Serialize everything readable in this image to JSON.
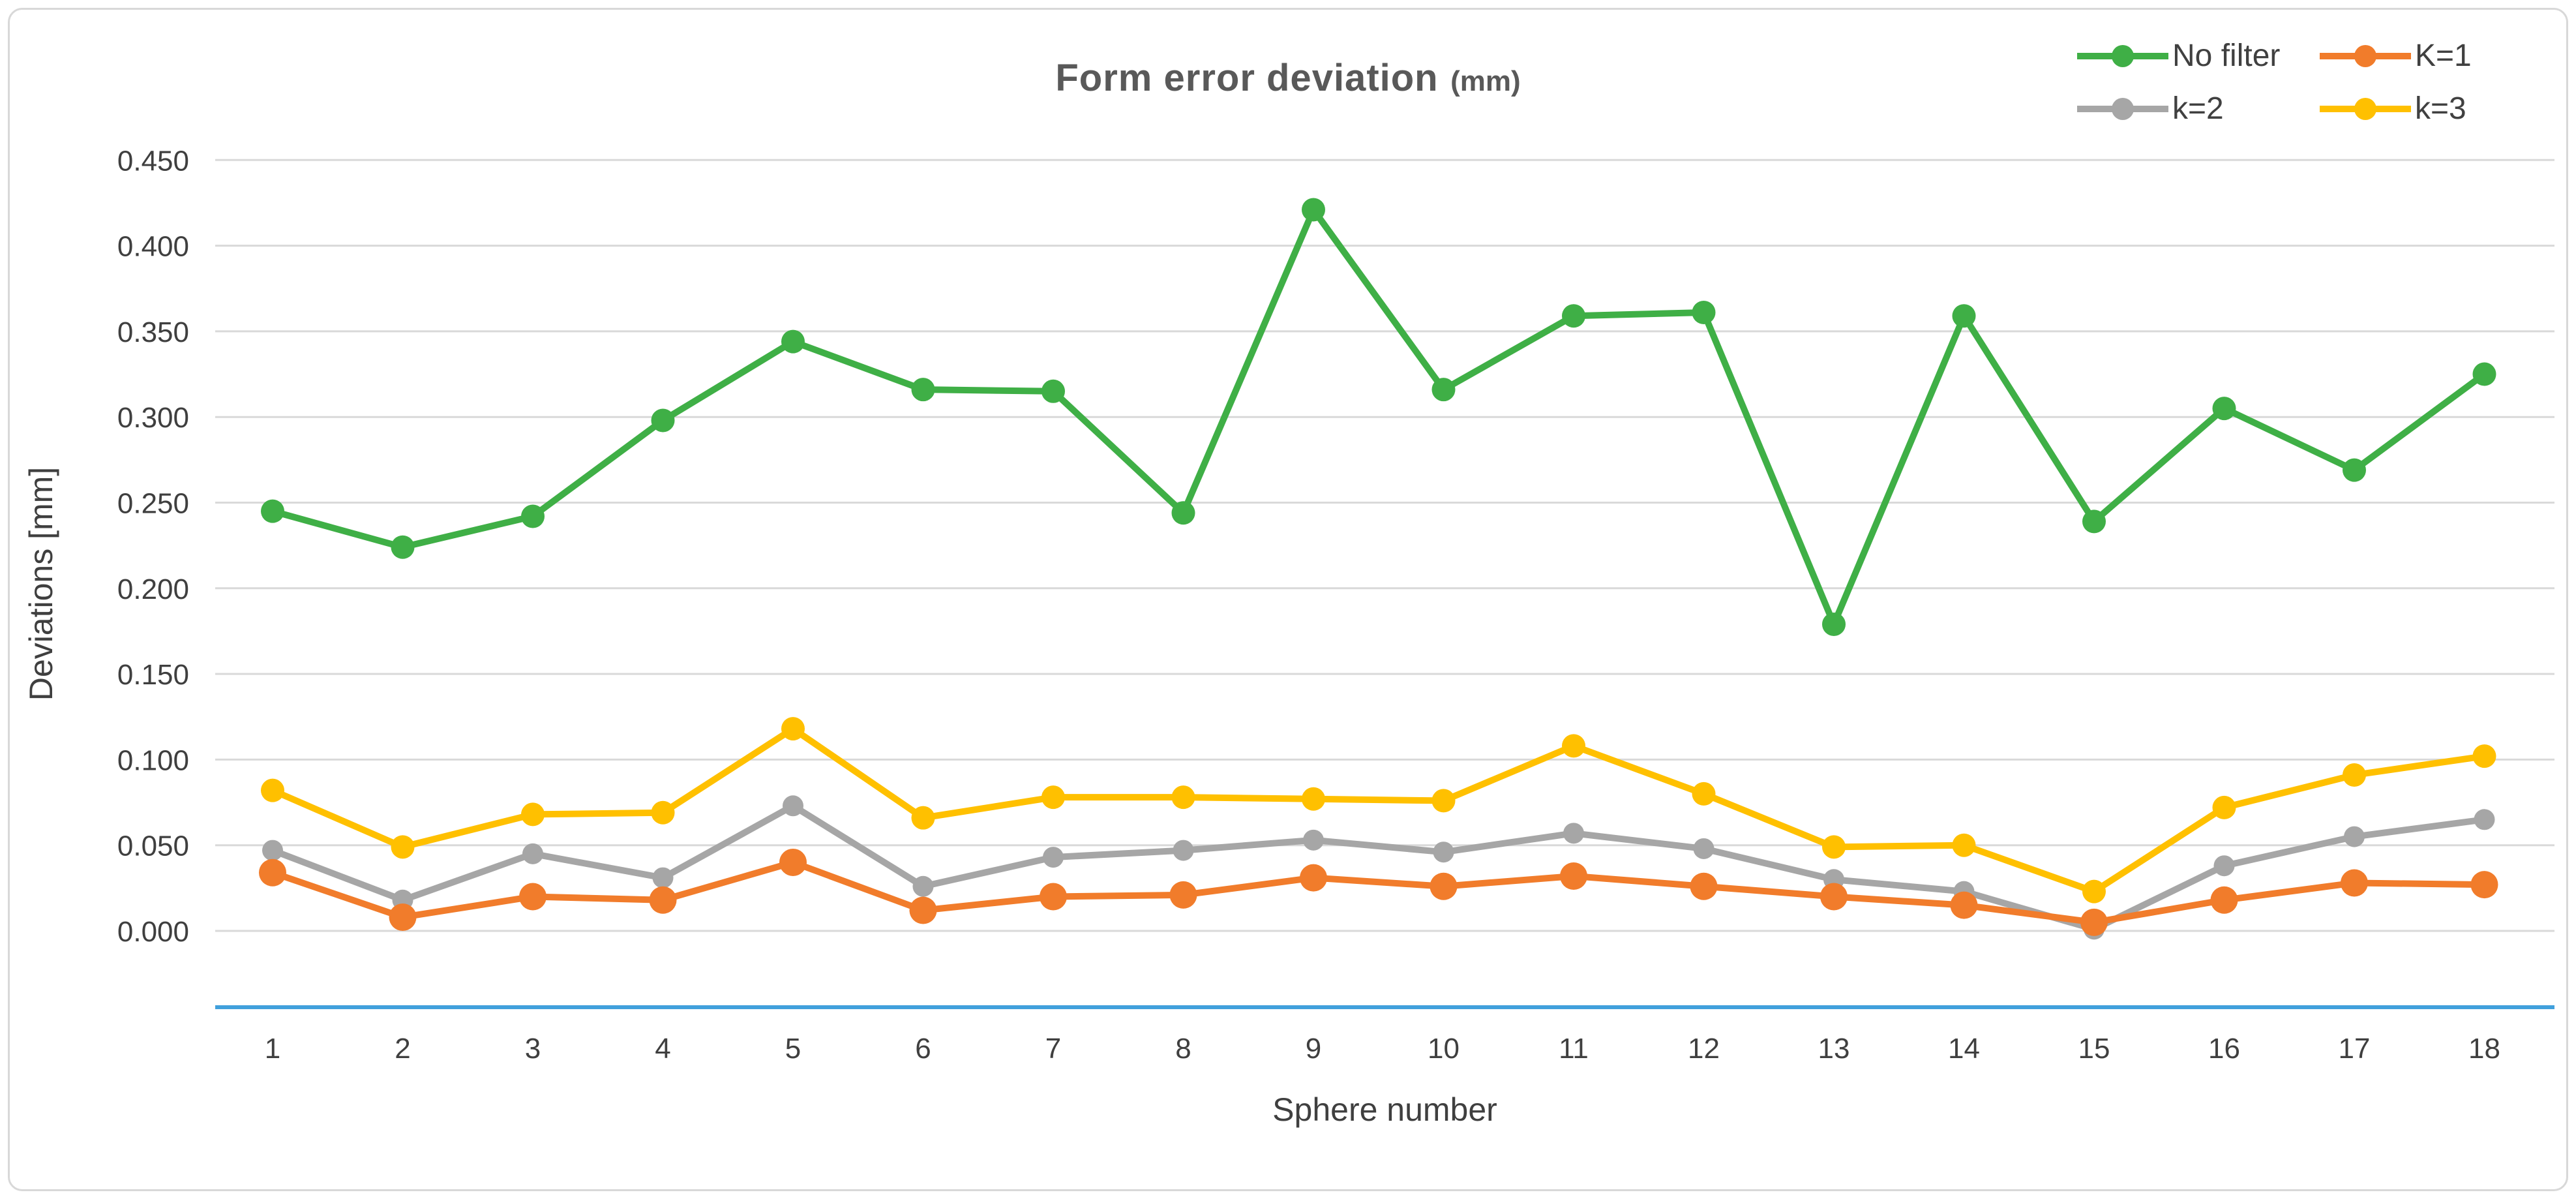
{
  "window": {
    "background": "#ffffff",
    "border_color": "#d8d8d8"
  },
  "chart_data": {
    "type": "line",
    "title": "Form error deviation",
    "title_unit": "(mm)",
    "xlabel": "Sphere number",
    "ylabel": "Deviations [mm]",
    "categories": [
      "1",
      "2",
      "3",
      "4",
      "5",
      "6",
      "7",
      "8",
      "9",
      "10",
      "11",
      "12",
      "13",
      "14",
      "15",
      "16",
      "17",
      "18"
    ],
    "yticks": [
      "0.000",
      "0.050",
      "0.100",
      "0.150",
      "0.200",
      "0.250",
      "0.300",
      "0.350",
      "0.400",
      "0.450"
    ],
    "ylim": [
      0,
      0.45
    ],
    "grid": true,
    "legend_position": "top-right",
    "series": [
      {
        "name": "No filter",
        "color": "#3FAF46",
        "marker_radius": 18,
        "values": [
          0.245,
          0.224,
          0.242,
          0.298,
          0.344,
          0.316,
          0.315,
          0.244,
          0.421,
          0.316,
          0.359,
          0.361,
          0.179,
          0.359,
          0.239,
          0.305,
          0.269,
          0.325
        ]
      },
      {
        "name": "K=1",
        "color": "#F17C2B",
        "marker_radius": 21,
        "values": [
          0.034,
          0.008,
          0.02,
          0.018,
          0.04,
          0.012,
          0.02,
          0.021,
          0.031,
          0.026,
          0.032,
          0.026,
          0.02,
          0.015,
          0.005,
          0.018,
          0.028,
          0.027
        ]
      },
      {
        "name": "k=2",
        "color": "#A6A6A6",
        "marker_radius": 16,
        "values": [
          0.047,
          0.018,
          0.045,
          0.031,
          0.073,
          0.026,
          0.043,
          0.047,
          0.053,
          0.046,
          0.057,
          0.048,
          0.03,
          0.023,
          0.001,
          0.038,
          0.055,
          0.065
        ]
      },
      {
        "name": "k=3",
        "color": "#FFC000",
        "marker_radius": 18,
        "values": [
          0.082,
          0.049,
          0.068,
          0.069,
          0.118,
          0.066,
          0.078,
          0.078,
          0.077,
          0.076,
          0.108,
          0.08,
          0.049,
          0.05,
          0.023,
          0.072,
          0.091,
          0.102
        ]
      }
    ],
    "axis_line_color": "#41A0DC",
    "gridline_color": "#D9D9D9",
    "text_color": "#3F3F3F",
    "title_color": "#595959"
  }
}
